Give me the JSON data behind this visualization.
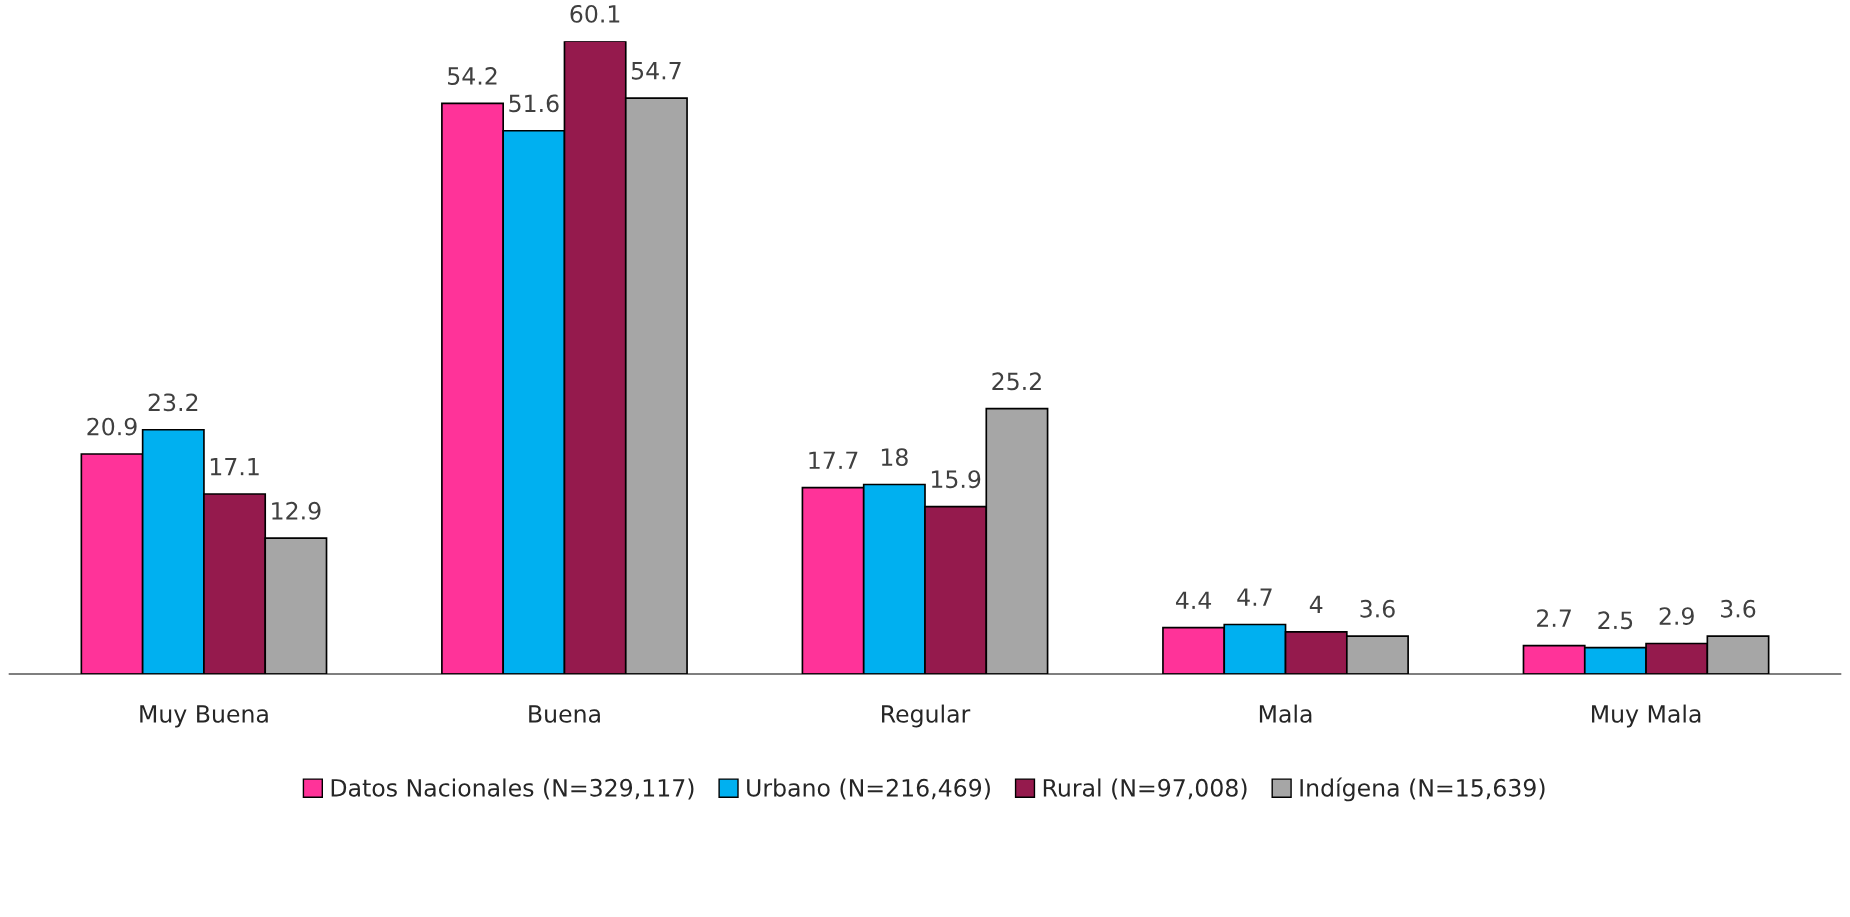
{
  "chart_data": {
    "type": "bar",
    "categories": [
      "Muy Buena",
      "Buena",
      "Regular",
      "Mala",
      "Muy Mala"
    ],
    "series": [
      {
        "name": "Datos Nacionales (N=329,117)",
        "color": "#ff3399",
        "values": [
          20.9,
          54.2,
          17.7,
          4.4,
          2.7
        ]
      },
      {
        "name": "Urbano (N=216,469)",
        "color": "#00b0f0",
        "values": [
          23.2,
          51.6,
          18,
          4.7,
          2.5
        ]
      },
      {
        "name": "Rural (N=97,008)",
        "color": "#951a4d",
        "values": [
          17.1,
          60.1,
          15.9,
          4,
          2.9
        ]
      },
      {
        "name": "Indígena (N=15,639)",
        "color": "#a6a6a6",
        "values": [
          12.9,
          54.7,
          25.2,
          3.6,
          3.6
        ]
      }
    ],
    "data_labels": true,
    "legend": "bottom",
    "grid": false
  }
}
